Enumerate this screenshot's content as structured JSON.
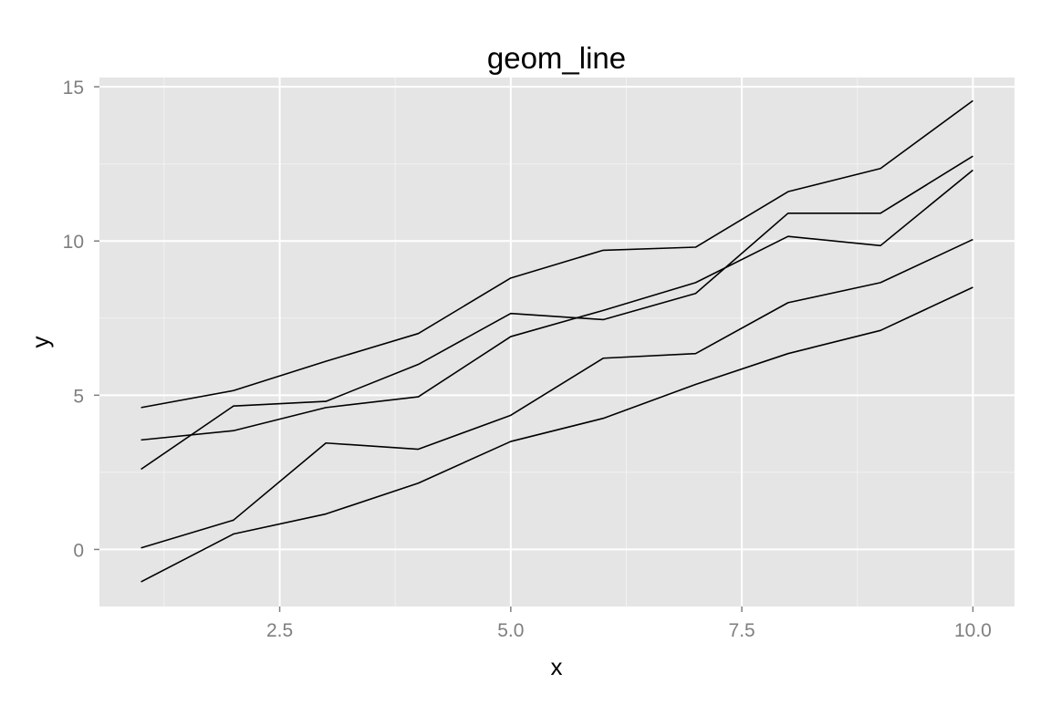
{
  "chart_data": {
    "type": "line",
    "title": "geom_line",
    "xlabel": "x",
    "ylabel": "y",
    "xlim": [
      0.55,
      10.45
    ],
    "ylim": [
      -1.85,
      15.3
    ],
    "x_ticks": [
      2.5,
      5.0,
      7.5,
      10.0
    ],
    "x_tick_labels": [
      "2.5",
      "5.0",
      "7.5",
      "10.0"
    ],
    "x_minor_ticks": [
      1.25,
      3.75,
      6.25,
      8.75
    ],
    "y_ticks": [
      0,
      5,
      10,
      15
    ],
    "y_tick_labels": [
      "0",
      "5",
      "10",
      "15"
    ],
    "y_minor_ticks": [
      2.5,
      7.5,
      12.5
    ],
    "grid": true,
    "legend": "none",
    "x": [
      1,
      2,
      3,
      4,
      5,
      6,
      7,
      8,
      9,
      10
    ],
    "series": [
      {
        "values": [
          4.6,
          5.15,
          6.1,
          7.0,
          8.8,
          9.7,
          9.8,
          11.6,
          12.35,
          14.55
        ]
      },
      {
        "values": [
          2.6,
          4.65,
          4.8,
          6.0,
          7.65,
          7.45,
          8.3,
          10.9,
          10.9,
          12.75
        ]
      },
      {
        "values": [
          3.55,
          3.85,
          4.6,
          4.95,
          6.9,
          7.75,
          8.65,
          10.15,
          9.85,
          12.3
        ]
      },
      {
        "values": [
          0.05,
          0.95,
          3.45,
          3.25,
          4.35,
          6.2,
          6.35,
          8.0,
          8.65,
          10.05
        ]
      },
      {
        "values": [
          -1.05,
          0.5,
          1.15,
          2.15,
          3.5,
          4.25,
          5.35,
          6.35,
          7.1,
          8.5
        ]
      }
    ],
    "colors": {
      "panel_background": "#e5e5e5",
      "grid_major": "#ffffff",
      "grid_minor": "#f2f2f2",
      "line": "#000000",
      "tick_text": "#7f7f7f",
      "tick_mark": "#7f7f7f",
      "title_text": "#000000"
    }
  }
}
